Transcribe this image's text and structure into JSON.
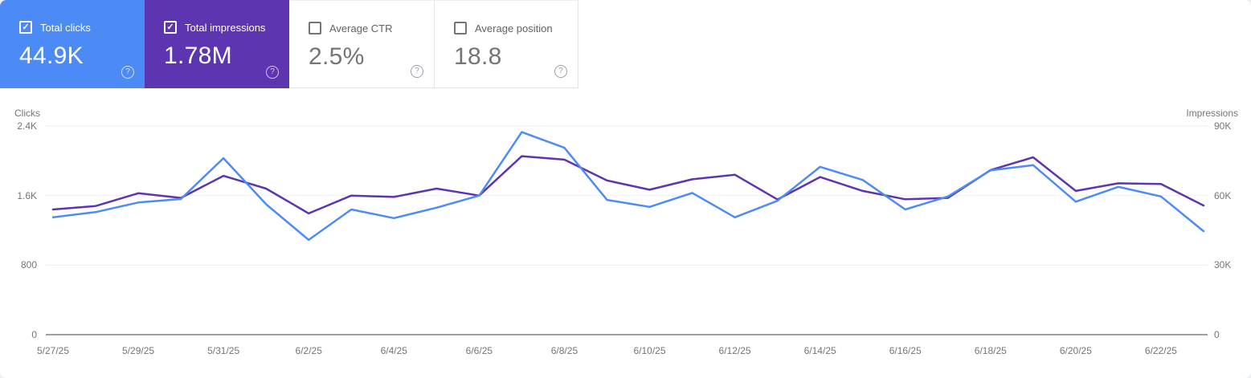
{
  "cards": [
    {
      "label": "Total clicks",
      "value": "44.9K",
      "checked": true,
      "bg": "#4c8bf5",
      "label_color": "#ffffff",
      "value_color": "#ffffff",
      "checkbox_color": "#ffffff",
      "help_color": "rgba(255,255,255,0.75)"
    },
    {
      "label": "Total impressions",
      "value": "1.78M",
      "checked": true,
      "bg": "#5e35b1",
      "label_color": "#ffffff",
      "value_color": "#ffffff",
      "checkbox_color": "#ffffff",
      "help_color": "rgba(255,255,255,0.75)"
    },
    {
      "label": "Average CTR",
      "value": "2.5%",
      "checked": false,
      "bg": "#ffffff",
      "label_color": "#5f6368",
      "value_color": "#757575",
      "checkbox_color": "#757575",
      "help_color": "#9aa0a6"
    },
    {
      "label": "Average position",
      "value": "18.8",
      "checked": false,
      "bg": "#ffffff",
      "label_color": "#5f6368",
      "value_color": "#757575",
      "checkbox_color": "#757575",
      "help_color": "#9aa0a6"
    }
  ],
  "icons": {
    "check": "✓",
    "help": "?"
  },
  "chart_data": {
    "type": "line",
    "x": [
      "5/27/25",
      "5/28/25",
      "5/29/25",
      "5/30/25",
      "5/31/25",
      "6/1/25",
      "6/2/25",
      "6/3/25",
      "6/4/25",
      "6/5/25",
      "6/6/25",
      "6/7/25",
      "6/8/25",
      "6/9/25",
      "6/10/25",
      "6/11/25",
      "6/12/25",
      "6/13/25",
      "6/14/25",
      "6/15/25",
      "6/16/25",
      "6/17/25",
      "6/18/25",
      "6/19/25",
      "6/20/25",
      "6/21/25",
      "6/22/25",
      "6/23/25"
    ],
    "x_tick_every": 2,
    "series": [
      {
        "name": "Impressions",
        "axis": "right",
        "color": "#5e35b1",
        "values": [
          54000,
          55500,
          61000,
          59000,
          68500,
          63000,
          52300,
          60000,
          59400,
          63000,
          60000,
          77000,
          75500,
          66500,
          62500,
          67000,
          69000,
          58300,
          68000,
          62000,
          58400,
          59000,
          71000,
          76500,
          62000,
          65300,
          65000,
          55700
        ]
      },
      {
        "name": "Clicks",
        "axis": "left",
        "color": "#4d8cf5",
        "values": [
          1350,
          1410,
          1520,
          1560,
          2030,
          1500,
          1090,
          1440,
          1340,
          1460,
          1600,
          2330,
          2150,
          1550,
          1470,
          1630,
          1350,
          1540,
          1930,
          1780,
          1440,
          1590,
          1890,
          1950,
          1530,
          1700,
          1590,
          1190
        ]
      }
    ],
    "left_axis": {
      "title": "Clicks",
      "max": 2400,
      "ticks": [
        {
          "label": "0",
          "value": 0
        },
        {
          "label": "800",
          "value": 800
        },
        {
          "label": "1.6K",
          "value": 1600
        },
        {
          "label": "2.4K",
          "value": 2400
        }
      ]
    },
    "right_axis": {
      "title": "Impressions",
      "max": 90000,
      "ticks": [
        {
          "label": "0",
          "value": 0
        },
        {
          "label": "30K",
          "value": 30000
        },
        {
          "label": "60K",
          "value": 60000
        },
        {
          "label": "90K",
          "value": 90000
        }
      ]
    },
    "grid": true,
    "legend_position": "none",
    "grid_color": "#eeeeee",
    "baseline_color": "#9e9e9e"
  }
}
